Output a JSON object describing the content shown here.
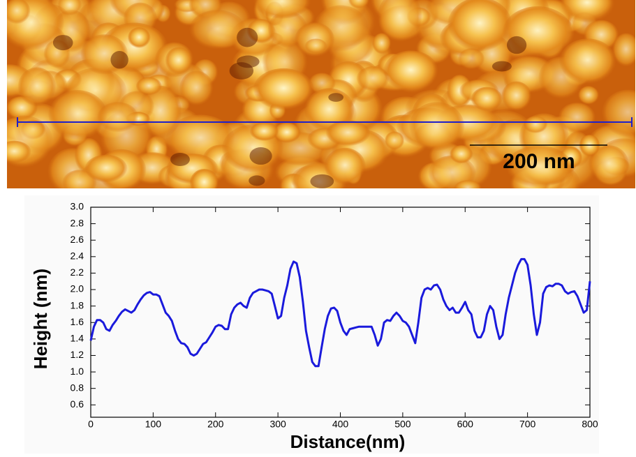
{
  "scale_bar": "200 nm",
  "chart_data": {
    "type": "line",
    "x_label": "Distance(nm)",
    "y_label": "Height (nm)",
    "xlim": [
      0,
      800
    ],
    "ylim": [
      0.45,
      3.0
    ],
    "xticks": [
      0,
      100,
      200,
      300,
      400,
      500,
      600,
      700,
      800
    ],
    "yticks": [
      0.6,
      0.8,
      {
        "value": 1,
        "label": "1.0"
      },
      1.2,
      1.4,
      1.6,
      1.8,
      {
        "value": 2,
        "label": "2.0"
      },
      2.2,
      2.4,
      2.6,
      2.8,
      {
        "value": 3,
        "label": "3.0"
      }
    ],
    "series": [
      {
        "color": "#1a1adc",
        "x": [
          0,
          5,
          10,
          15,
          20,
          25,
          30,
          35,
          40,
          45,
          50,
          55,
          60,
          65,
          70,
          75,
          80,
          85,
          90,
          95,
          100,
          105,
          110,
          115,
          120,
          125,
          130,
          135,
          140,
          145,
          150,
          155,
          160,
          165,
          170,
          175,
          180,
          185,
          190,
          195,
          200,
          205,
          210,
          215,
          220,
          225,
          230,
          235,
          240,
          245,
          250,
          255,
          260,
          265,
          270,
          275,
          280,
          285,
          290,
          295,
          300,
          305,
          310,
          315,
          320,
          325,
          330,
          335,
          340,
          345,
          350,
          355,
          360,
          365,
          370,
          375,
          380,
          385,
          390,
          395,
          400,
          405,
          410,
          415,
          420,
          425,
          430,
          440,
          450,
          455,
          460,
          465,
          470,
          475,
          480,
          485,
          490,
          495,
          500,
          505,
          510,
          515,
          520,
          525,
          530,
          535,
          540,
          545,
          550,
          555,
          560,
          565,
          570,
          575,
          580,
          585,
          590,
          595,
          600,
          605,
          610,
          615,
          620,
          625,
          630,
          635,
          640,
          645,
          650,
          655,
          660,
          665,
          670,
          675,
          680,
          685,
          690,
          695,
          700,
          705,
          710,
          715,
          720,
          725,
          730,
          735,
          740,
          745,
          750,
          755,
          760,
          765,
          770,
          775,
          780,
          785,
          790,
          795,
          800
        ],
        "values": [
          1.38,
          1.55,
          1.63,
          1.63,
          1.6,
          1.52,
          1.5,
          1.57,
          1.62,
          1.68,
          1.73,
          1.76,
          1.74,
          1.72,
          1.75,
          1.82,
          1.88,
          1.93,
          1.96,
          1.97,
          1.94,
          1.94,
          1.92,
          1.82,
          1.72,
          1.68,
          1.62,
          1.5,
          1.4,
          1.35,
          1.34,
          1.3,
          1.22,
          1.2,
          1.22,
          1.28,
          1.34,
          1.36,
          1.42,
          1.48,
          1.55,
          1.57,
          1.56,
          1.52,
          1.52,
          1.7,
          1.78,
          1.82,
          1.84,
          1.8,
          1.78,
          1.9,
          1.96,
          1.98,
          2.0,
          2.0,
          1.99,
          1.98,
          1.95,
          1.8,
          1.65,
          1.68,
          1.9,
          2.05,
          2.25,
          2.34,
          2.32,
          2.15,
          1.85,
          1.5,
          1.3,
          1.12,
          1.07,
          1.07,
          1.3,
          1.52,
          1.68,
          1.77,
          1.78,
          1.74,
          1.6,
          1.5,
          1.45,
          1.52,
          1.53,
          1.54,
          1.55,
          1.55,
          1.55,
          1.45,
          1.32,
          1.4,
          1.6,
          1.63,
          1.62,
          1.68,
          1.72,
          1.68,
          1.62,
          1.6,
          1.55,
          1.45,
          1.35,
          1.6,
          1.9,
          2.0,
          2.02,
          2.0,
          2.05,
          2.06,
          2.0,
          1.88,
          1.8,
          1.75,
          1.78,
          1.72,
          1.72,
          1.78,
          1.85,
          1.75,
          1.7,
          1.5,
          1.42,
          1.42,
          1.5,
          1.7,
          1.8,
          1.75,
          1.55,
          1.4,
          1.45,
          1.7,
          1.9,
          2.05,
          2.2,
          2.3,
          2.37,
          2.37,
          2.3,
          2.05,
          1.7,
          1.45,
          1.6,
          1.95,
          2.03,
          2.05,
          2.04,
          2.07,
          2.07,
          2.05,
          1.98,
          1.95,
          1.97,
          1.98,
          1.92,
          1.82,
          1.72,
          1.75,
          2.1
        ]
      }
    ]
  }
}
